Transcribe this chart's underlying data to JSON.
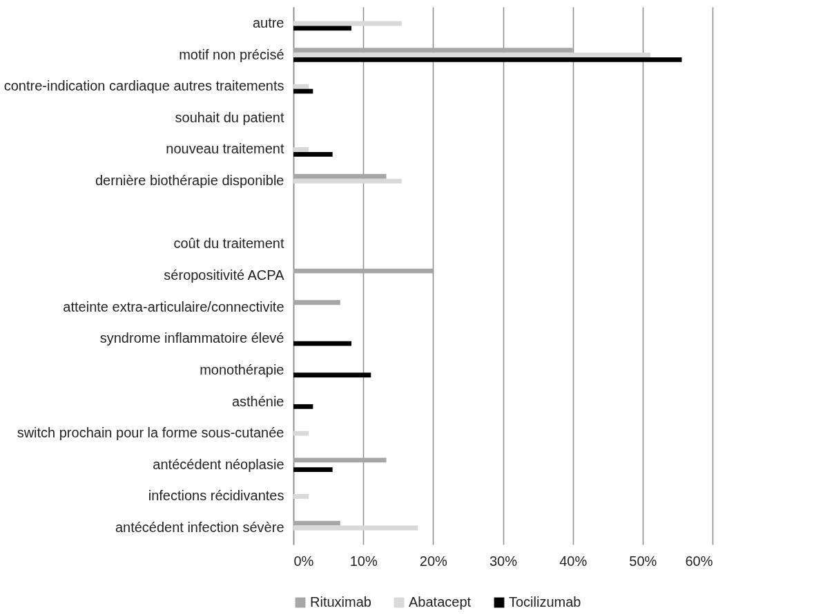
{
  "chart_data": {
    "type": "bar",
    "orientation": "horizontal",
    "categories": [
      "autre",
      "motif non précisé",
      "contre-indication cardiaque autres traitements",
      "souhait du patient",
      "nouveau traitement",
      "dernière biothérapie disponible",
      null,
      "coût du traitement",
      "séropositivité ACPA",
      "atteinte extra-articulaire/connectivite ",
      "syndrome inflammatoire élevé",
      "monothérapie",
      "asthénie",
      "switch prochain pour la forme sous-cutanée",
      "antécédent néoplasie",
      "infections récidivantes",
      "antécédent infection sévère"
    ],
    "series": [
      {
        "name": "Rituximab",
        "color": "#a6a6a6",
        "values": [
          null,
          40,
          null,
          null,
          null,
          13.3,
          null,
          null,
          20,
          6.7,
          null,
          null,
          null,
          null,
          13.3,
          null,
          6.7
        ]
      },
      {
        "name": "Abatacept",
        "color": "#d9d9d9",
        "values": [
          15.5,
          51.1,
          2.2,
          null,
          2.2,
          15.5,
          null,
          null,
          null,
          null,
          null,
          null,
          null,
          2.2,
          null,
          2.2,
          17.8
        ]
      },
      {
        "name": "Tocilizumab",
        "color": "#000000",
        "values": [
          8.3,
          55.6,
          2.8,
          null,
          5.6,
          null,
          null,
          null,
          null,
          null,
          8.3,
          11.1,
          2.8,
          null,
          5.6,
          null,
          null
        ]
      }
    ],
    "xlim": [
      0,
      60
    ],
    "xticks": [
      {
        "value": 0,
        "label": "0%"
      },
      {
        "value": 10,
        "label": "10%"
      },
      {
        "value": 20,
        "label": "20%"
      },
      {
        "value": 30,
        "label": "30%"
      },
      {
        "value": 40,
        "label": "40%"
      },
      {
        "value": 50,
        "label": "50%"
      },
      {
        "value": 60,
        "label": "60%"
      }
    ],
    "grid": "x",
    "legend": "bottom"
  }
}
